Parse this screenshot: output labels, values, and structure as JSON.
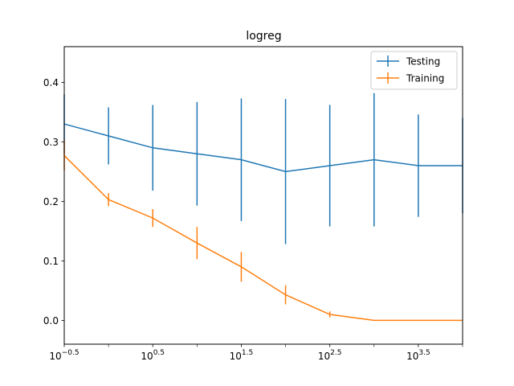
{
  "chart_data": {
    "type": "line",
    "title": "logreg",
    "xscale": "log",
    "x": [
      0.3162,
      1,
      3.162,
      10,
      31.62,
      100,
      316.2,
      1000,
      3162,
      10000
    ],
    "xlim": [
      0.3162,
      10000
    ],
    "ylim": [
      -0.04,
      0.46
    ],
    "xticks": [
      {
        "value": 0.3162,
        "base": "10",
        "exp": "−0.5"
      },
      {
        "value": 3.162,
        "base": "10",
        "exp": "0.5"
      },
      {
        "value": 31.62,
        "base": "10",
        "exp": "1.5"
      },
      {
        "value": 316.2,
        "base": "10",
        "exp": "2.5"
      },
      {
        "value": 3162,
        "base": "10",
        "exp": "3.5"
      }
    ],
    "xminor": [
      1,
      10,
      100,
      1000,
      10000
    ],
    "yticks": [
      {
        "value": 0.0,
        "label": "0.0"
      },
      {
        "value": 0.1,
        "label": "0.1"
      },
      {
        "value": 0.2,
        "label": "0.2"
      },
      {
        "value": 0.3,
        "label": "0.3"
      },
      {
        "value": 0.4,
        "label": "0.4"
      }
    ],
    "legend_position": "top-right",
    "series": [
      {
        "name": "Testing",
        "color": "#1f77b4",
        "values": [
          0.33,
          0.31,
          0.29,
          0.28,
          0.27,
          0.25,
          0.26,
          0.27,
          0.26,
          0.26
        ],
        "errors": [
          0.05,
          0.048,
          0.072,
          0.087,
          0.103,
          0.122,
          0.102,
          0.112,
          0.086,
          0.08
        ]
      },
      {
        "name": "Training",
        "color": "#ff7f0e",
        "values": [
          0.277,
          0.203,
          0.172,
          0.13,
          0.09,
          0.043,
          0.01,
          0.0,
          0.0,
          0.0
        ],
        "errors": [
          0.025,
          0.011,
          0.015,
          0.027,
          0.025,
          0.016,
          0.005,
          0.0,
          0.0,
          0.0
        ]
      }
    ]
  }
}
